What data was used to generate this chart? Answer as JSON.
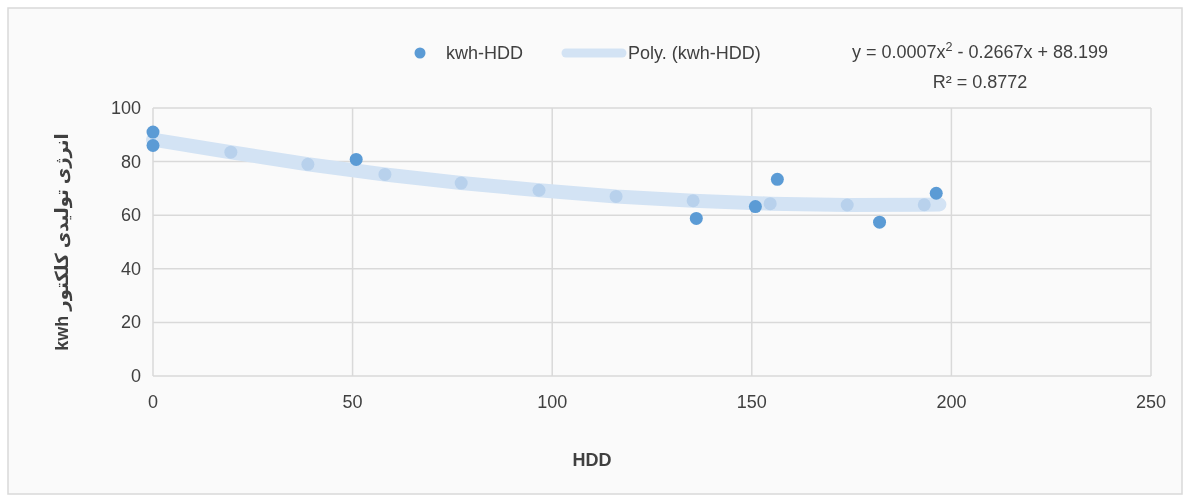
{
  "chart_data": {
    "type": "scatter",
    "xlabel": "HDD",
    "ylabel": "انرژی تولیدی کلکتور kwh",
    "xlim": [
      0,
      250
    ],
    "xticks": [
      0,
      50,
      100,
      150,
      200,
      250
    ],
    "ylim": [
      0,
      100
    ],
    "yticks": [
      0,
      20,
      40,
      60,
      80,
      100
    ],
    "grid": true,
    "legend": "top",
    "marker": "circle",
    "series": [
      {
        "name": "kwh-HDD",
        "color": "#5b9bd5",
        "x": [
          0,
          0,
          50.9,
          136.1,
          150.9,
          156.4,
          182,
          196.2
        ],
        "values": [
          91,
          86,
          80.8,
          58.8,
          63.2,
          73.4,
          57.4,
          68.2
        ]
      },
      {
        "name": "Poly. (kwh-HDD)",
        "type": "line",
        "color": "#d3e3f4",
        "x": [
          0,
          19.5,
          38.8,
          58.1,
          77.2,
          96.7,
          116,
          135.3,
          154.6,
          173.9,
          193.2,
          197
        ],
        "values": [
          88.2,
          83.5,
          79.0,
          75.2,
          72.0,
          69.3,
          67.0,
          65.4,
          64.3,
          63.8,
          63.9,
          64
        ]
      }
    ],
    "annotations": [
      "y = 0.0007x$^{2}$ - 0.2667x + 88.199",
      "R² = 0.8772"
    ]
  }
}
